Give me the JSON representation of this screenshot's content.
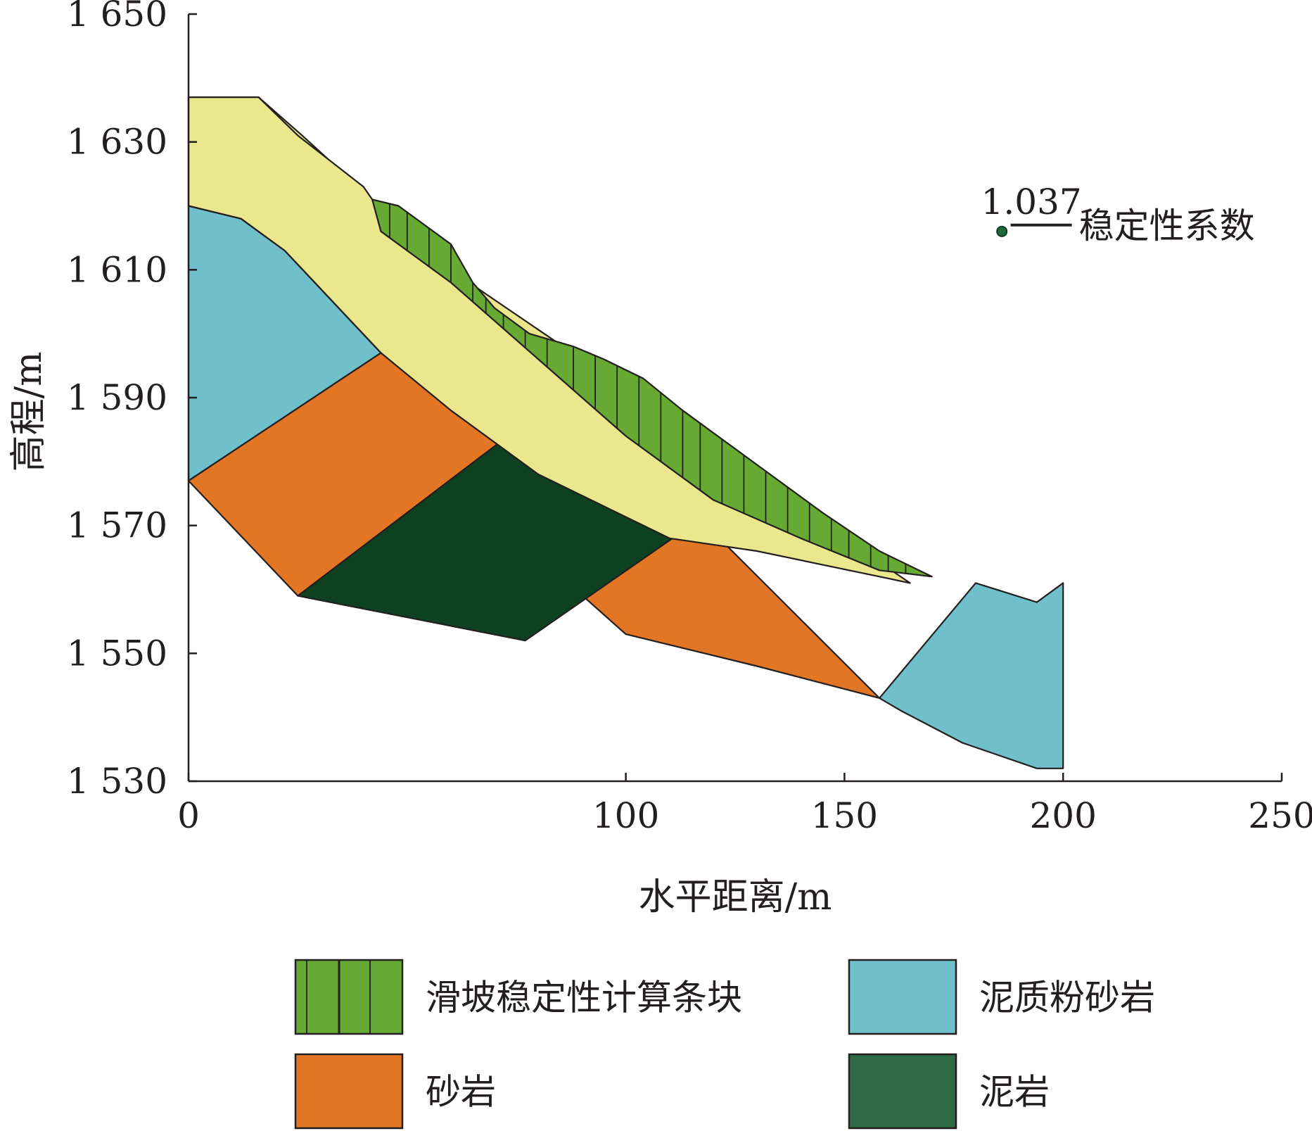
{
  "chart_data": {
    "type": "area",
    "title": "",
    "xlabel": "水平距离/m",
    "ylabel": "高程/m",
    "xlim": [
      0,
      250
    ],
    "ylim": [
      1530,
      1650
    ],
    "x_ticks": [
      {
        "value": 0,
        "label": "0"
      },
      {
        "value": 100,
        "label": "100"
      },
      {
        "value": 150,
        "label": "150"
      },
      {
        "value": 200,
        "label": "200"
      },
      {
        "value": 250,
        "label": "250"
      }
    ],
    "y_ticks": [
      {
        "value": 1650,
        "label": "1 650"
      },
      {
        "value": 1630,
        "label": "1 630"
      },
      {
        "value": 1610,
        "label": "1 610"
      },
      {
        "value": 1590,
        "label": "1 590"
      },
      {
        "value": 1570,
        "label": "1 570"
      },
      {
        "value": 1550,
        "label": "1 550"
      },
      {
        "value": 1530,
        "label": "1 530"
      }
    ],
    "annotation": {
      "value": "1.037",
      "label": "稳定性系数",
      "point": [
        186,
        1616
      ],
      "line_x": [
        188,
        202
      ],
      "line_y": 1617
    },
    "legend": [
      {
        "key": "slices",
        "label": "滑坡稳定性计算条块",
        "color": "#66aa33",
        "pattern": "vertical-lines"
      },
      {
        "key": "mudstone_siltstone",
        "label": "泥质粉砂岩",
        "color": "#6fc0ca"
      },
      {
        "key": "sandstone",
        "label": "砂岩",
        "color": "#e37625"
      },
      {
        "key": "mudstone",
        "label": "泥岩",
        "color": "#2f6b45"
      }
    ],
    "layers": [
      {
        "key": "mudstone_siltstone",
        "name": "泥质粉砂岩",
        "color": "#6fc0ca",
        "polygons": [
          [
            [
              0,
              1577
            ],
            [
              0,
              1620
            ],
            [
              12,
              1618
            ],
            [
              22,
              1613
            ],
            [
              44,
              1597
            ],
            [
              0,
              1577
            ]
          ],
          [
            [
              158,
              1543
            ],
            [
              163,
              1541
            ],
            [
              177,
              1536
            ],
            [
              194,
              1532
            ],
            [
              200,
              1532
            ],
            [
              200,
              1561
            ],
            [
              194,
              1558
            ],
            [
              180,
              1561
            ],
            [
              158,
              1543
            ]
          ]
        ]
      },
      {
        "key": "sandstone",
        "name": "砂岩",
        "color": "#e37625",
        "polygons": [
          [
            [
              0,
              1577
            ],
            [
              44,
              1597
            ],
            [
              75,
              1585
            ],
            [
              25,
              1559
            ],
            [
              0,
              1577
            ]
          ],
          [
            [
              77,
              1567
            ],
            [
              117,
              1571
            ],
            [
              158,
              1543
            ],
            [
              130,
              1548
            ],
            [
              100,
              1553
            ],
            [
              77,
              1567
            ]
          ]
        ]
      },
      {
        "key": "mudstone",
        "name": "泥岩",
        "color": "#0d4122",
        "polygons": [
          [
            [
              25,
              1559
            ],
            [
              75,
              1585
            ],
            [
              117,
              1571
            ],
            [
              77,
              1552
            ],
            [
              25,
              1559
            ]
          ]
        ]
      },
      {
        "key": "clay_cover",
        "name": "",
        "color": "#ebe78c",
        "polygons": [
          [
            [
              0,
              1620
            ],
            [
              0,
              1637
            ],
            [
              16,
              1637
            ],
            [
              26,
              1631
            ],
            [
              42,
              1621
            ],
            [
              46,
              1616
            ],
            [
              44,
              1597
            ],
            [
              22,
              1613
            ],
            [
              12,
              1618
            ],
            [
              0,
              1620
            ]
          ]
        ]
      },
      {
        "key": "slices",
        "name": "滑坡稳定性计算条块",
        "color": "#66aa33",
        "polygons": []
      }
    ],
    "clay_band": {
      "top": [
        [
          0,
          1637
        ],
        [
          16,
          1637
        ],
        [
          25,
          1631
        ],
        [
          40,
          1623
        ],
        [
          42,
          1621
        ],
        [
          47,
          1616
        ]
      ],
      "bottom": [
        [
          0,
          1620
        ],
        [
          12,
          1618
        ],
        [
          22,
          1613
        ],
        [
          44,
          1597
        ],
        [
          60,
          1588
        ],
        [
          80,
          1578
        ],
        [
          110,
          1568
        ],
        [
          130,
          1566
        ],
        [
          165,
          1561
        ]
      ]
    },
    "slices": {
      "top": [
        [
          42,
          1621
        ],
        [
          48,
          1620
        ],
        [
          60,
          1614
        ],
        [
          65,
          1608
        ],
        [
          70,
          1604
        ],
        [
          78,
          1600
        ],
        [
          88,
          1598
        ],
        [
          95,
          1596
        ],
        [
          104,
          1593
        ],
        [
          113,
          1588
        ],
        [
          123,
          1583
        ],
        [
          135,
          1577
        ],
        [
          145,
          1572
        ],
        [
          158,
          1566
        ],
        [
          170,
          1562
        ]
      ],
      "bottom": [
        [
          42,
          1621
        ],
        [
          44,
          1616
        ],
        [
          60,
          1608
        ],
        [
          80,
          1596
        ],
        [
          100,
          1584
        ],
        [
          120,
          1574
        ],
        [
          140,
          1568
        ],
        [
          158,
          1563
        ],
        [
          170,
          1562
        ]
      ],
      "dividers": [
        46,
        50,
        55,
        60,
        65,
        68,
        72,
        77,
        82,
        88,
        93,
        98,
        103,
        108,
        113,
        117,
        122,
        127,
        132,
        137,
        142,
        147,
        151,
        156,
        160,
        164
      ]
    }
  }
}
